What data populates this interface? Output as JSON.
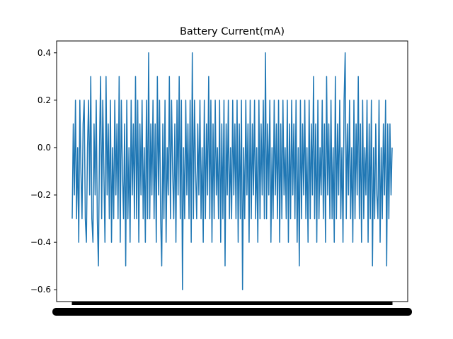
{
  "chart_data": {
    "type": "line",
    "title": "Battery Current(mA)",
    "xlabel": "",
    "ylabel": "",
    "ylim": [
      -0.65,
      0.45
    ],
    "yticks": [
      -0.6,
      -0.4,
      -0.2,
      0.0,
      0.2,
      0.4
    ],
    "yticklabels": [
      "−0.6",
      "−0.4",
      "−0.2",
      "0.0",
      "0.2",
      "0.4"
    ],
    "x_tick_labels_illegible": true,
    "grid": false,
    "legend": "none",
    "series": [
      {
        "color": "#1f77b4",
        "values": [
          -0.3,
          0.1,
          -0.2,
          0.2,
          -0.3,
          0.0,
          -0.4,
          0.2,
          -0.1,
          -0.3,
          0.1,
          0.2,
          -0.3,
          -0.4,
          0.0,
          0.2,
          -0.2,
          0.3,
          -0.3,
          -0.4,
          0.1,
          -0.2,
          0.2,
          -0.3,
          -0.5,
          0.0,
          0.3,
          -0.3,
          0.2,
          -0.1,
          -0.4,
          0.3,
          -0.2,
          0.1,
          -0.3,
          0.2,
          -0.4,
          0.0,
          -0.3,
          0.2,
          -0.2,
          0.1,
          -0.3,
          0.3,
          -0.4,
          0.2,
          -0.1,
          -0.3,
          0.1,
          -0.5,
          0.2,
          -0.3,
          0.0,
          -0.4,
          0.2,
          -0.2,
          0.1,
          -0.3,
          0.3,
          -0.3,
          0.2,
          -0.4,
          0.1,
          -0.2,
          0.2,
          -0.3,
          0.0,
          -0.4,
          0.2,
          -0.3,
          0.4,
          -0.3,
          0.1,
          -0.2,
          0.2,
          -0.3,
          0.1,
          -0.4,
          0.3,
          -0.2,
          0.2,
          -0.3,
          -0.5,
          0.1,
          -0.3,
          0.2,
          -0.4,
          0.0,
          -0.2,
          0.3,
          -0.3,
          0.2,
          -0.1,
          -0.3,
          0.1,
          -0.4,
          0.2,
          -0.2,
          0.3,
          -0.3,
          0.2,
          -0.6,
          0.0,
          -0.3,
          0.2,
          -0.2,
          0.1,
          -0.3,
          0.2,
          -0.4,
          0.4,
          -0.3,
          0.2,
          -0.1,
          -0.3,
          0.1,
          -0.2,
          0.2,
          -0.3,
          0.0,
          -0.4,
          0.2,
          -0.3,
          0.1,
          -0.2,
          0.3,
          -0.3,
          0.2,
          -0.4,
          0.1,
          -0.3,
          0.2,
          -0.2,
          0.0,
          -0.3,
          0.2,
          -0.4,
          0.1,
          -0.3,
          0.2,
          -0.5,
          0.1,
          -0.2,
          0.2,
          -0.3,
          0.0,
          -0.3,
          0.2,
          -0.2,
          0.1,
          -0.3,
          0.2,
          -0.4,
          0.1,
          -0.3,
          0.2,
          -0.6,
          0.0,
          -0.3,
          0.2,
          -0.2,
          0.1,
          -0.4,
          0.2,
          -0.3,
          0.1,
          -0.2,
          0.2,
          -0.3,
          0.0,
          -0.4,
          0.2,
          -0.3,
          0.1,
          -0.2,
          0.2,
          -0.3,
          0.4,
          -0.3,
          0.1,
          -0.2,
          0.2,
          -0.4,
          0.0,
          -0.3,
          0.2,
          -0.2,
          0.1,
          -0.3,
          0.2,
          -0.4,
          0.1,
          -0.3,
          0.2,
          -0.2,
          0.0,
          -0.3,
          0.2,
          -0.4,
          0.1,
          -0.3,
          0.2,
          -0.2,
          0.1,
          -0.3,
          0.2,
          -0.4,
          0.0,
          -0.5,
          0.2,
          -0.3,
          0.1,
          -0.2,
          0.2,
          -0.3,
          0.0,
          -0.4,
          0.2,
          -0.3,
          0.1,
          -0.2,
          0.3,
          -0.3,
          0.1,
          -0.4,
          0.2,
          -0.3,
          0.0,
          -0.2,
          0.2,
          -0.3,
          0.1,
          -0.4,
          0.3,
          -0.2,
          0.1,
          -0.3,
          0.2,
          -0.3,
          0.0,
          -0.4,
          0.3,
          -0.3,
          0.1,
          -0.2,
          0.2,
          -0.3,
          0.0,
          -0.4,
          0.2,
          0.4,
          -0.3,
          0.1,
          -0.2,
          0.2,
          -0.3,
          0.0,
          -0.4,
          0.2,
          -0.3,
          0.1,
          -0.2,
          0.3,
          -0.3,
          0.1,
          -0.4,
          0.2,
          -0.3,
          0.0,
          -0.2,
          0.2,
          -0.4,
          0.1,
          -0.3,
          0.2,
          -0.5,
          0.0,
          -0.3,
          0.1,
          -0.2,
          -0.3,
          0.2,
          -0.4,
          0.0,
          -0.3,
          0.1,
          -0.2,
          0.2,
          -0.5,
          0.1,
          -0.3,
          0.1,
          -0.2,
          0.0
        ]
      }
    ]
  }
}
